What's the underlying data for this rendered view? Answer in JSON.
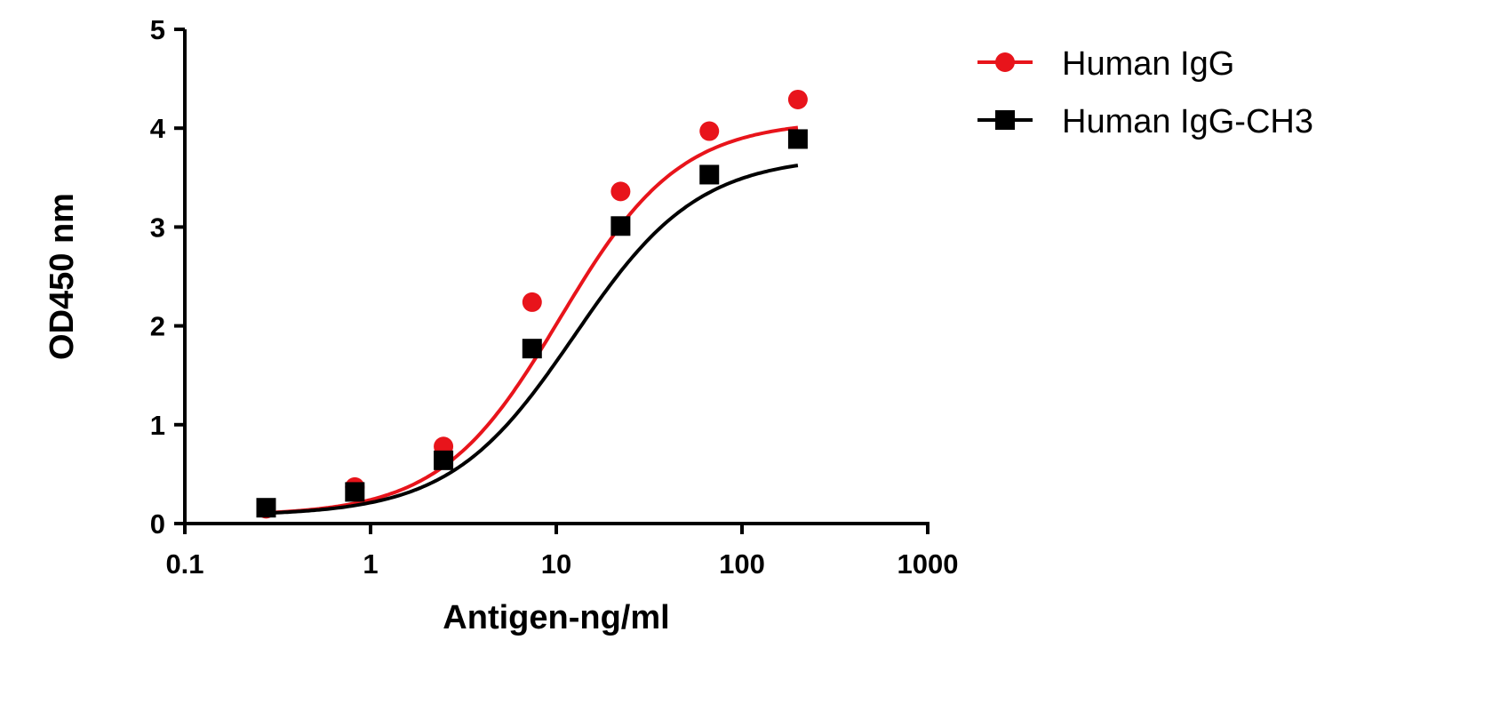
{
  "chart_data": {
    "type": "scatter",
    "title": "",
    "xlabel": "Antigen-ng/ml",
    "ylabel": "OD450 nm",
    "xscale": "log",
    "xlim": [
      0.1,
      1000
    ],
    "ylim": [
      0,
      5
    ],
    "xticks": [
      "0.1",
      "1",
      "10",
      "100",
      "1000"
    ],
    "yticks": [
      "0",
      "1",
      "2",
      "3",
      "4",
      "5"
    ],
    "grid": false,
    "legend_position": "top-right",
    "x": [
      0.274,
      0.823,
      2.47,
      7.41,
      22.2,
      66.7,
      200
    ],
    "series": [
      {
        "name": "Human IgG",
        "color": "#e8141b",
        "marker": "circle",
        "values": [
          0.15,
          0.37,
          0.78,
          2.24,
          3.36,
          3.97,
          4.29
        ],
        "fit": {
          "model": "4PL",
          "bottom": 0.08,
          "top": 4.08,
          "ec50": 10.5,
          "hill": 1.35
        }
      },
      {
        "name": "Human IgG-CH3",
        "color": "#000000",
        "marker": "square",
        "values": [
          0.16,
          0.32,
          0.64,
          1.77,
          3.01,
          3.53,
          3.89
        ],
        "fit": {
          "model": "4PL",
          "bottom": 0.08,
          "top": 3.72,
          "ec50": 12.5,
          "hill": 1.3
        }
      }
    ]
  }
}
